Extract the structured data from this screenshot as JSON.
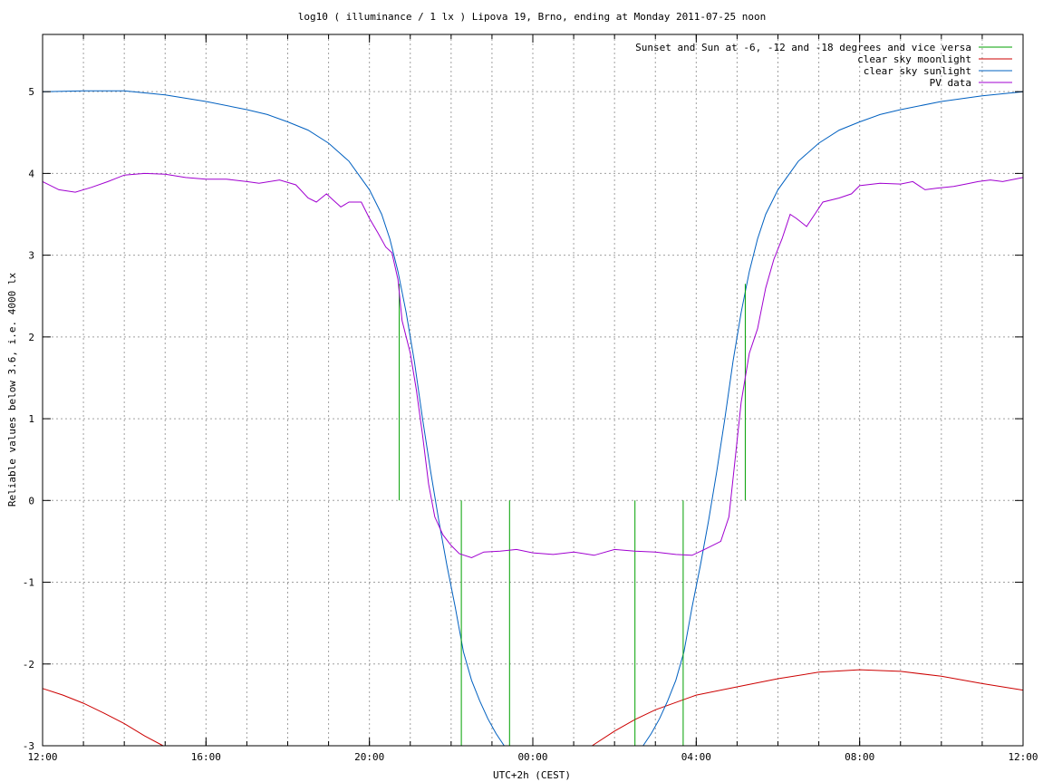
{
  "chart_data": {
    "type": "line",
    "title": "log10 ( illuminance / 1 lx ) Lipova 19, Brno, ending at Monday 2011-07-25 noon",
    "xlabel": "UTC+2h (CEST)",
    "ylabel": "Reliable values below 3.6, i.e. 4000 lx",
    "x_unit": "hours relative to 2011-07-24 12:00 (UTC+2)",
    "xlim": [
      0,
      24
    ],
    "ylim": [
      -3,
      5.7
    ],
    "x_ticks": [
      {
        "x": 0,
        "label": "12:00"
      },
      {
        "x": 4,
        "label": "16:00"
      },
      {
        "x": 8,
        "label": "20:00"
      },
      {
        "x": 12,
        "label": "00:00"
      },
      {
        "x": 16,
        "label": "04:00"
      },
      {
        "x": 20,
        "label": "08:00"
      },
      {
        "x": 24,
        "label": "12:00"
      }
    ],
    "x_minor_step": 1,
    "y_ticks": [
      -3,
      -2,
      -1,
      0,
      1,
      2,
      3,
      4,
      5
    ],
    "grid": true,
    "legend_position": "top-right",
    "series": [
      {
        "name": "Sunset and Sun at -6, -12 and -18 degrees and vice versa",
        "color": "#00a000",
        "kind": "vlines",
        "points": [
          [
            8.73,
            0,
            2.65
          ],
          [
            10.25,
            -3,
            0
          ],
          [
            11.43,
            -3,
            0
          ],
          [
            14.5,
            -3,
            0
          ],
          [
            15.68,
            -3,
            0
          ],
          [
            17.2,
            0,
            2.65
          ]
        ]
      },
      {
        "name": "clear sky moonlight",
        "color": "#cc0000",
        "segments": [
          [
            [
              0,
              -2.3
            ],
            [
              0.5,
              -2.38
            ],
            [
              1,
              -2.48
            ],
            [
              1.5,
              -2.6
            ],
            [
              2,
              -2.73
            ],
            [
              2.5,
              -2.88
            ],
            [
              2.95,
              -3.0
            ]
          ],
          [
            [
              13.45,
              -3.0
            ],
            [
              14.0,
              -2.82
            ],
            [
              14.5,
              -2.68
            ],
            [
              15.0,
              -2.56
            ],
            [
              16.0,
              -2.38
            ],
            [
              17.0,
              -2.28
            ],
            [
              18.0,
              -2.18
            ],
            [
              19.0,
              -2.1
            ],
            [
              20.0,
              -2.07
            ],
            [
              21.0,
              -2.09
            ],
            [
              22.0,
              -2.15
            ],
            [
              23.0,
              -2.24
            ],
            [
              24.0,
              -2.32
            ]
          ]
        ]
      },
      {
        "name": "clear sky sunlight",
        "color": "#0060c0",
        "segments": [
          [
            [
              0,
              5.0
            ],
            [
              1,
              5.01
            ],
            [
              2,
              5.01
            ],
            [
              3,
              4.96
            ],
            [
              4,
              4.88
            ],
            [
              5,
              4.78
            ],
            [
              5.5,
              4.72
            ],
            [
              6,
              4.63
            ],
            [
              6.5,
              4.53
            ],
            [
              7,
              4.37
            ],
            [
              7.5,
              4.15
            ],
            [
              8,
              3.8
            ],
            [
              8.3,
              3.5
            ],
            [
              8.5,
              3.2
            ],
            [
              8.7,
              2.8
            ],
            [
              8.9,
              2.3
            ],
            [
              9.1,
              1.7
            ],
            [
              9.3,
              1.0
            ],
            [
              9.5,
              0.35
            ],
            [
              9.7,
              -0.25
            ],
            [
              9.9,
              -0.8
            ],
            [
              10.1,
              -1.3
            ],
            [
              10.3,
              -1.85
            ],
            [
              10.5,
              -2.2
            ],
            [
              10.7,
              -2.45
            ],
            [
              10.9,
              -2.67
            ],
            [
              11.1,
              -2.85
            ],
            [
              11.3,
              -3.0
            ]
          ],
          [
            [
              14.7,
              -3.0
            ],
            [
              14.9,
              -2.85
            ],
            [
              15.1,
              -2.67
            ],
            [
              15.3,
              -2.45
            ],
            [
              15.5,
              -2.2
            ],
            [
              15.7,
              -1.85
            ],
            [
              15.9,
              -1.3
            ],
            [
              16.1,
              -0.8
            ],
            [
              16.3,
              -0.25
            ],
            [
              16.5,
              0.35
            ],
            [
              16.7,
              1.0
            ],
            [
              16.9,
              1.7
            ],
            [
              17.1,
              2.3
            ],
            [
              17.3,
              2.8
            ],
            [
              17.5,
              3.2
            ],
            [
              17.7,
              3.5
            ],
            [
              18.0,
              3.8
            ],
            [
              18.5,
              4.15
            ],
            [
              19,
              4.37
            ],
            [
              19.5,
              4.53
            ],
            [
              20,
              4.63
            ],
            [
              20.5,
              4.72
            ],
            [
              21,
              4.78
            ],
            [
              22,
              4.88
            ],
            [
              23,
              4.95
            ],
            [
              24,
              5.0
            ]
          ]
        ]
      },
      {
        "name": "PV data",
        "color": "#a000d0",
        "points": [
          [
            0,
            3.9
          ],
          [
            0.4,
            3.8
          ],
          [
            0.8,
            3.77
          ],
          [
            1.2,
            3.83
          ],
          [
            1.6,
            3.9
          ],
          [
            2.0,
            3.98
          ],
          [
            2.5,
            4.0
          ],
          [
            3.0,
            3.99
          ],
          [
            3.5,
            3.95
          ],
          [
            4.0,
            3.93
          ],
          [
            4.5,
            3.93
          ],
          [
            5.0,
            3.9
          ],
          [
            5.3,
            3.88
          ],
          [
            5.8,
            3.92
          ],
          [
            6.2,
            3.86
          ],
          [
            6.5,
            3.7
          ],
          [
            6.7,
            3.65
          ],
          [
            6.95,
            3.75
          ],
          [
            7.1,
            3.68
          ],
          [
            7.3,
            3.59
          ],
          [
            7.5,
            3.65
          ],
          [
            7.8,
            3.65
          ],
          [
            8.0,
            3.45
          ],
          [
            8.2,
            3.28
          ],
          [
            8.4,
            3.1
          ],
          [
            8.55,
            3.03
          ],
          [
            8.7,
            2.7
          ],
          [
            8.8,
            2.2
          ],
          [
            9.0,
            1.8
          ],
          [
            9.15,
            1.35
          ],
          [
            9.3,
            0.8
          ],
          [
            9.45,
            0.2
          ],
          [
            9.6,
            -0.2
          ],
          [
            9.8,
            -0.42
          ],
          [
            10.0,
            -0.55
          ],
          [
            10.2,
            -0.65
          ],
          [
            10.5,
            -0.7
          ],
          [
            10.8,
            -0.63
          ],
          [
            11.2,
            -0.62
          ],
          [
            11.6,
            -0.6
          ],
          [
            12.0,
            -0.64
          ],
          [
            12.5,
            -0.66
          ],
          [
            13.0,
            -0.63
          ],
          [
            13.5,
            -0.67
          ],
          [
            14.0,
            -0.6
          ],
          [
            14.5,
            -0.62
          ],
          [
            15.0,
            -0.63
          ],
          [
            15.5,
            -0.66
          ],
          [
            15.9,
            -0.67
          ],
          [
            16.2,
            -0.6
          ],
          [
            16.6,
            -0.5
          ],
          [
            16.8,
            -0.2
          ],
          [
            16.95,
            0.5
          ],
          [
            17.1,
            1.2
          ],
          [
            17.3,
            1.8
          ],
          [
            17.5,
            2.1
          ],
          [
            17.7,
            2.6
          ],
          [
            17.9,
            2.95
          ],
          [
            18.1,
            3.2
          ],
          [
            18.3,
            3.5
          ],
          [
            18.45,
            3.45
          ],
          [
            18.7,
            3.35
          ],
          [
            18.9,
            3.5
          ],
          [
            19.1,
            3.65
          ],
          [
            19.5,
            3.7
          ],
          [
            19.8,
            3.75
          ],
          [
            20.0,
            3.85
          ],
          [
            20.5,
            3.88
          ],
          [
            21.0,
            3.87
          ],
          [
            21.3,
            3.9
          ],
          [
            21.6,
            3.8
          ],
          [
            21.9,
            3.82
          ],
          [
            22.3,
            3.84
          ],
          [
            22.6,
            3.87
          ],
          [
            22.9,
            3.9
          ],
          [
            23.2,
            3.92
          ],
          [
            23.5,
            3.9
          ],
          [
            24.0,
            3.95
          ]
        ]
      }
    ]
  }
}
